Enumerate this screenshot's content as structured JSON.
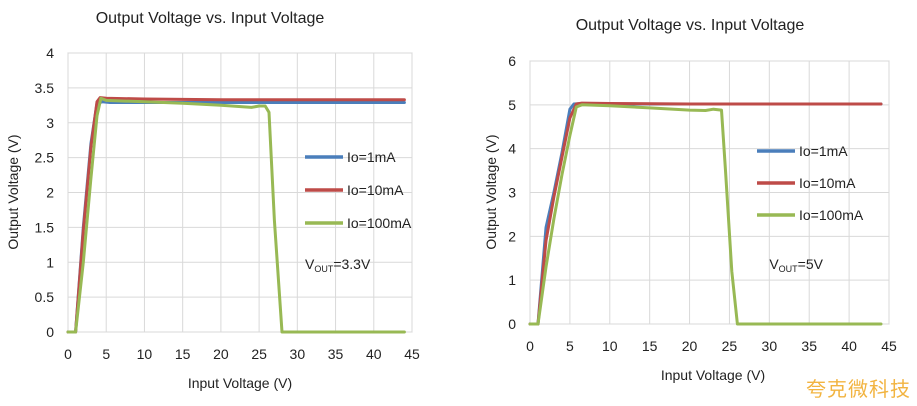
{
  "watermark": "夸克微科技",
  "chart_data": [
    {
      "type": "line",
      "title": "Output Voltage vs. Input Voltage",
      "xlabel": "Input Voltage (V)",
      "ylabel": "Output Voltage (V)",
      "xlim": [
        0,
        45
      ],
      "ylim": [
        0,
        4
      ],
      "xticks": [
        "0",
        "5",
        "10",
        "15",
        "20",
        "25",
        "30",
        "35",
        "40",
        "45"
      ],
      "yticks": [
        "0",
        "0.5",
        "1",
        "1.5",
        "2",
        "2.5",
        "3",
        "3.5",
        "4"
      ],
      "grid": true,
      "legend": "right",
      "annotation": {
        "main": "V",
        "sub": "OUT",
        "rest": "=3.3V",
        "x": 31,
        "y": 0.9
      },
      "series": [
        {
          "name": "Io=1mA",
          "color": "#4a7ebb",
          "x": [
            0,
            1,
            2,
            3,
            3.8,
            4.5,
            5.5,
            10,
            20,
            30,
            44
          ],
          "y": [
            0,
            0,
            1.5,
            2.7,
            3.28,
            3.3,
            3.29,
            3.29,
            3.29,
            3.29,
            3.29
          ]
        },
        {
          "name": "Io=10mA",
          "color": "#be4b48",
          "x": [
            0,
            1,
            2,
            3,
            3.8,
            4.2,
            5,
            10,
            20,
            30,
            44
          ],
          "y": [
            0,
            0,
            1.45,
            2.65,
            3.3,
            3.36,
            3.35,
            3.34,
            3.33,
            3.33,
            3.33
          ]
        },
        {
          "name": "Io=100mA",
          "color": "#98b954",
          "x": [
            0,
            1,
            2,
            3,
            3.8,
            4.3,
            5,
            10,
            15,
            20,
            24,
            25,
            25.8,
            26.3,
            27,
            28,
            28.5,
            30,
            44
          ],
          "y": [
            0,
            0,
            1.0,
            2.2,
            3.1,
            3.35,
            3.32,
            3.3,
            3.28,
            3.25,
            3.22,
            3.24,
            3.24,
            3.15,
            1.6,
            0.0,
            0,
            0,
            0
          ]
        }
      ]
    },
    {
      "type": "line",
      "title": "Output Voltage vs. Input Voltage",
      "xlabel": "Input Voltage (V)",
      "ylabel": "Output Voltage (V)",
      "xlim": [
        0,
        45
      ],
      "ylim": [
        0,
        6
      ],
      "xticks": [
        "0",
        "5",
        "10",
        "15",
        "20",
        "25",
        "30",
        "35",
        "40",
        "45"
      ],
      "yticks": [
        "0",
        "1",
        "2",
        "3",
        "4",
        "5",
        "6"
      ],
      "grid": true,
      "legend": "right",
      "annotation": {
        "main": "V",
        "sub": "OUT",
        "rest": "=5V",
        "x": 30,
        "y": 1.25
      },
      "series": [
        {
          "name": "Io=1mA",
          "color": "#4a7ebb",
          "x": [
            0,
            1,
            2,
            3,
            4,
            5,
            5.5,
            6.5,
            10,
            20,
            30,
            44
          ],
          "y": [
            0,
            0,
            2.2,
            3.0,
            3.9,
            4.9,
            5.02,
            5.03,
            5.02,
            5.02,
            5.02,
            5.02
          ]
        },
        {
          "name": "Io=10mA",
          "color": "#be4b48",
          "x": [
            0,
            1,
            2,
            3,
            4,
            5,
            5.8,
            6.5,
            10,
            20,
            30,
            44
          ],
          "y": [
            0,
            0,
            1.9,
            2.9,
            3.8,
            4.7,
            5.02,
            5.04,
            5.03,
            5.02,
            5.02,
            5.02
          ]
        },
        {
          "name": "Io=100mA",
          "color": "#98b954",
          "x": [
            0,
            1,
            2,
            3,
            4,
            5,
            5.8,
            6.5,
            10,
            15,
            20,
            22,
            23,
            24,
            24.5,
            25.3,
            26,
            26.5,
            30,
            44
          ],
          "y": [
            0,
            0,
            1.3,
            2.4,
            3.4,
            4.3,
            4.95,
            5.0,
            4.98,
            4.93,
            4.88,
            4.87,
            4.9,
            4.88,
            3.5,
            1.2,
            0,
            0,
            0,
            0
          ]
        }
      ]
    }
  ]
}
